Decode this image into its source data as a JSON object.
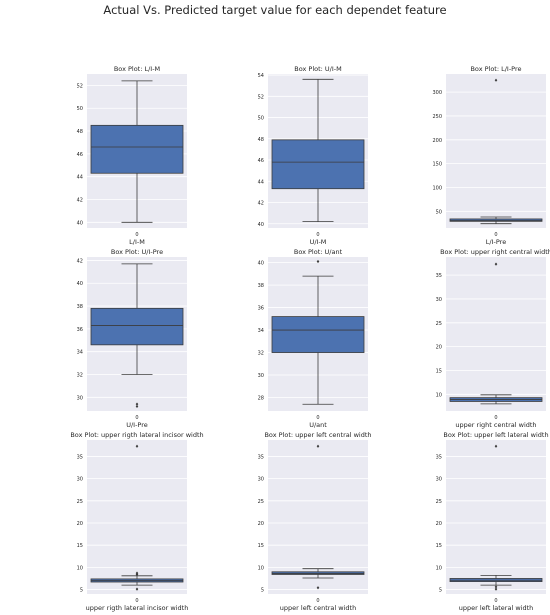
{
  "suptitle": "Actual Vs. Predicted target value for each dependet feature",
  "colors": {
    "box": "#4c72b0",
    "panel": "#eaeaf2",
    "grid": "#ffffff",
    "line": "#3b3b3b"
  },
  "chart_data": [
    {
      "type": "box",
      "title": "Box Plot: L/I-M",
      "xlabel": "L/I-M",
      "categories": [
        "0"
      ],
      "ylim": [
        39.5,
        53
      ],
      "yticks": [
        40,
        42,
        44,
        46,
        48,
        50,
        52
      ],
      "whisker_low": 40.0,
      "q1": 44.3,
      "median": 46.6,
      "q3": 48.5,
      "whisker_high": 52.4,
      "outliers": []
    },
    {
      "type": "box",
      "title": "Box Plot: U/I-M",
      "xlabel": "U/I-M",
      "categories": [
        "0"
      ],
      "ylim": [
        39.6,
        54.1
      ],
      "yticks": [
        40,
        42,
        44,
        46,
        48,
        50,
        52,
        54
      ],
      "whisker_low": 40.2,
      "q1": 43.3,
      "median": 45.8,
      "q3": 47.9,
      "whisker_high": 53.6,
      "outliers": []
    },
    {
      "type": "box",
      "title": "Box Plot: L/I-Pre",
      "xlabel": "L/I-Pre",
      "categories": [
        "0"
      ],
      "ylim": [
        15,
        338
      ],
      "yticks": [
        50,
        100,
        150,
        200,
        250,
        300
      ],
      "whisker_low": 24,
      "q1": 29,
      "median": 31,
      "q3": 34,
      "whisker_high": 38,
      "outliers": [
        325
      ]
    },
    {
      "type": "box",
      "title": "Box Plot: U/I-Pre",
      "xlabel": "U/I-Pre",
      "categories": [
        "0"
      ],
      "ylim": [
        28.8,
        42.3
      ],
      "yticks": [
        30,
        32,
        34,
        36,
        38,
        40,
        42
      ],
      "whisker_low": 32.0,
      "q1": 34.6,
      "median": 36.3,
      "q3": 37.8,
      "whisker_high": 41.7,
      "outliers": [
        29.4,
        29.2
      ]
    },
    {
      "type": "box",
      "title": "Box Plot: U/ant",
      "xlabel": "U/ant",
      "categories": [
        "0"
      ],
      "ylim": [
        26.8,
        40.5
      ],
      "yticks": [
        28,
        30,
        32,
        34,
        36,
        38,
        40
      ],
      "whisker_low": 27.4,
      "q1": 32.0,
      "median": 34.0,
      "q3": 35.2,
      "whisker_high": 38.8,
      "outliers": [
        40.1
      ]
    },
    {
      "type": "box",
      "title": "Box Plot: upper right central width",
      "xlabel": "upper right central width",
      "categories": [
        "0"
      ],
      "ylim": [
        6.5,
        38.8
      ],
      "yticks": [
        10,
        15,
        20,
        25,
        30,
        35
      ],
      "whisker_low": 8.0,
      "q1": 8.5,
      "median": 8.9,
      "q3": 9.3,
      "whisker_high": 9.9,
      "outliers": [
        37.3
      ]
    },
    {
      "type": "box",
      "title": "Box Plot: upper rigth lateral incisor width",
      "xlabel": "upper rigth lateral incisor width",
      "categories": [
        "0"
      ],
      "ylim": [
        4,
        38.7
      ],
      "yticks": [
        5,
        10,
        15,
        20,
        25,
        30,
        35
      ],
      "whisker_low": 6.0,
      "q1": 6.7,
      "median": 7.0,
      "q3": 7.4,
      "whisker_high": 8.1,
      "outliers": [
        37.3,
        8.7,
        8.4,
        5.1
      ]
    },
    {
      "type": "box",
      "title": "Box Plot: upper left central width",
      "xlabel": "upper left central width",
      "categories": [
        "0"
      ],
      "ylim": [
        4,
        38.7
      ],
      "yticks": [
        5,
        10,
        15,
        20,
        25,
        30,
        35
      ],
      "whisker_low": 7.6,
      "q1": 8.4,
      "median": 8.6,
      "q3": 9.0,
      "whisker_high": 9.7,
      "outliers": [
        37.3,
        5.4
      ]
    },
    {
      "type": "box",
      "title": "Box Plot: upper left lateral width",
      "xlabel": "upper left lateral width",
      "categories": [
        "0"
      ],
      "ylim": [
        4,
        38.7
      ],
      "yticks": [
        5,
        10,
        15,
        20,
        25,
        30,
        35
      ],
      "whisker_low": 6.0,
      "q1": 6.8,
      "median": 7.1,
      "q3": 7.5,
      "whisker_high": 8.2,
      "outliers": [
        37.3,
        5.6,
        5.1
      ]
    }
  ]
}
